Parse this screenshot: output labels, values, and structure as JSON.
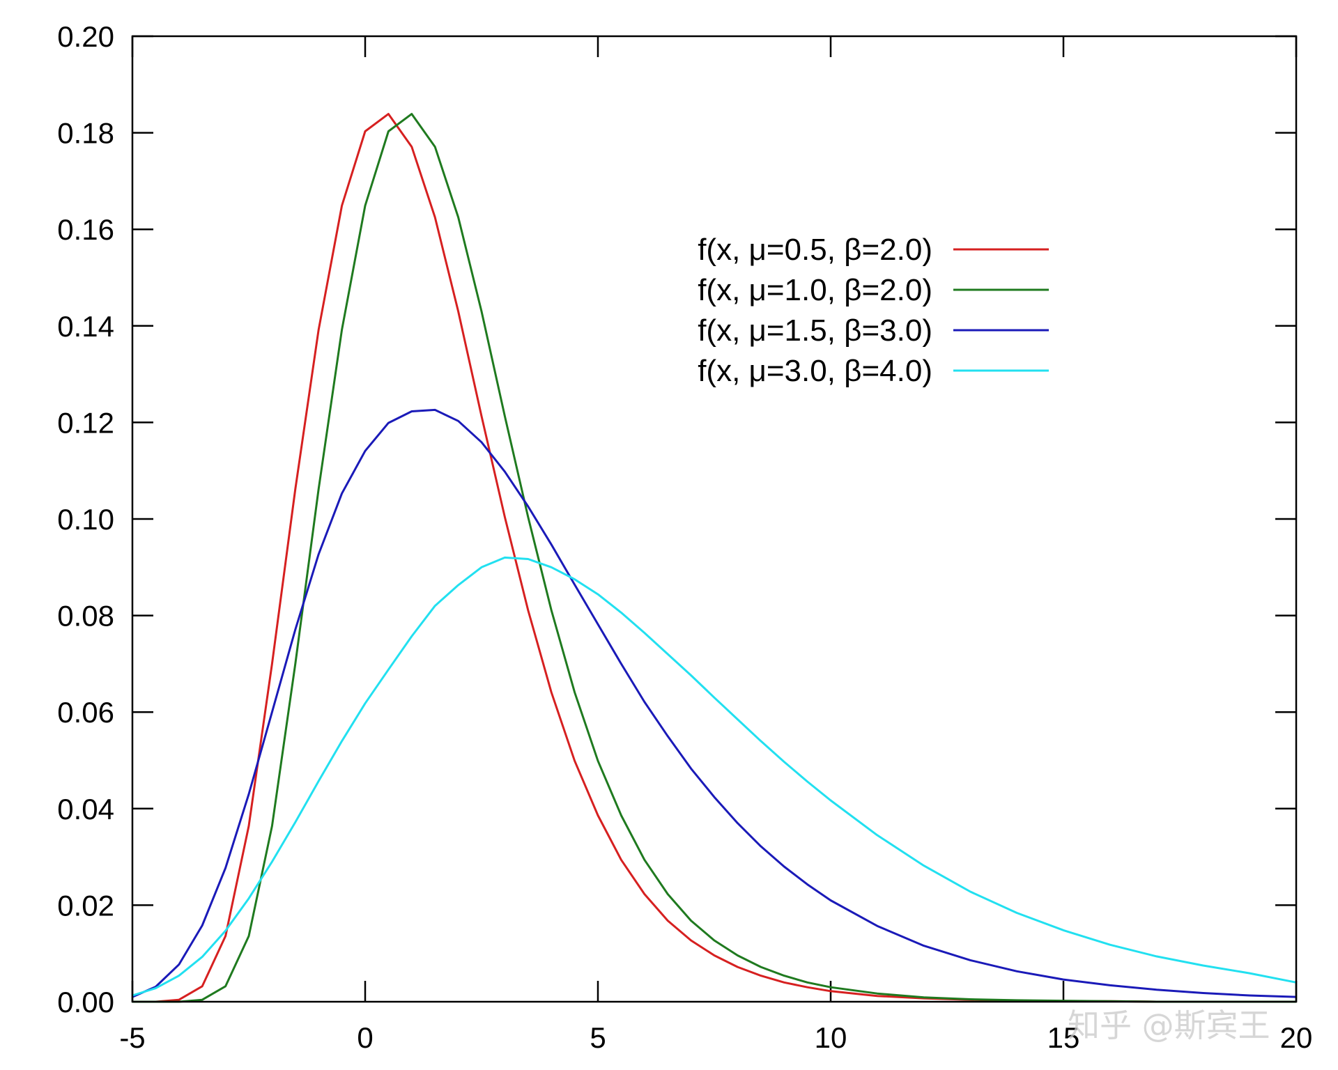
{
  "chart_data": {
    "type": "line",
    "title": "",
    "xlabel": "",
    "ylabel": "",
    "xlim": [
      -5,
      20
    ],
    "ylim": [
      0,
      0.2
    ],
    "x_ticks": [
      {
        "value": -5,
        "label": "-5"
      },
      {
        "value": 0,
        "label": "0"
      },
      {
        "value": 5,
        "label": "5"
      },
      {
        "value": 10,
        "label": "10"
      },
      {
        "value": 15,
        "label": "15"
      },
      {
        "value": 20,
        "label": "20"
      }
    ],
    "y_ticks": [
      {
        "value": 0,
        "label": "0.00"
      },
      {
        "value": 0.02,
        "label": "0.02"
      },
      {
        "value": 0.04,
        "label": "0.04"
      },
      {
        "value": 0.06,
        "label": "0.06"
      },
      {
        "value": 0.08,
        "label": "0.08"
      },
      {
        "value": 0.1,
        "label": "0.10"
      },
      {
        "value": 0.12,
        "label": "0.12"
      },
      {
        "value": 0.14,
        "label": "0.14"
      },
      {
        "value": 0.16,
        "label": "0.16"
      },
      {
        "value": 0.18,
        "label": "0.18"
      },
      {
        "value": 0.2,
        "label": "0.20"
      }
    ],
    "grid": false,
    "legend_position": "top-right",
    "series": [
      {
        "name": "f(x, μ=0.5, β=2.0)",
        "color": "#d62020",
        "x": [
          -5,
          -4.5,
          -4,
          -3.5,
          -3,
          -2.5,
          -2,
          -1.5,
          -1,
          -0.5,
          0,
          0.5,
          1,
          1.5,
          2,
          2.5,
          3,
          3.5,
          4,
          4.5,
          5,
          5.5,
          6,
          6.5,
          7,
          7.5,
          8,
          8.5,
          9,
          9.5,
          10,
          11,
          12,
          13,
          14,
          15,
          16,
          17,
          18,
          19,
          20
        ],
        "y": [
          0,
          0,
          0.0004,
          0.0032,
          0.0136,
          0.0364,
          0.07,
          0.1062,
          0.1392,
          0.1649,
          0.1803,
          0.1839,
          0.1771,
          0.1625,
          0.143,
          0.1213,
          0.1004,
          0.0811,
          0.0641,
          0.0499,
          0.0386,
          0.0294,
          0.0223,
          0.0168,
          0.0127,
          0.0096,
          0.0072,
          0.0054,
          0.004,
          0.003,
          0.0022,
          0.0012,
          0.0007,
          0.0004,
          0.0002,
          0.0001,
          0.0001,
          0,
          0,
          0,
          0
        ]
      },
      {
        "name": "f(x, μ=1.0, β=2.0)",
        "color": "#1f7a1f",
        "x": [
          -5,
          -4.5,
          -4,
          -3.5,
          -3,
          -2.5,
          -2,
          -1.5,
          -1,
          -0.5,
          0,
          0.5,
          1,
          1.5,
          2,
          2.5,
          3,
          3.5,
          4,
          4.5,
          5,
          5.5,
          6,
          6.5,
          7,
          7.5,
          8,
          8.5,
          9,
          9.5,
          10,
          11,
          12,
          13,
          14,
          15,
          16,
          17,
          18,
          19,
          20
        ],
        "y": [
          0,
          0,
          0,
          0.0004,
          0.0032,
          0.0136,
          0.0364,
          0.07,
          0.1062,
          0.1392,
          0.1649,
          0.1803,
          0.1839,
          0.1771,
          0.1625,
          0.143,
          0.1213,
          0.1004,
          0.0811,
          0.0641,
          0.0499,
          0.0386,
          0.0294,
          0.0223,
          0.0168,
          0.0127,
          0.0096,
          0.0072,
          0.0054,
          0.004,
          0.003,
          0.0017,
          0.0009,
          0.0005,
          0.0003,
          0.0002,
          0.0001,
          0,
          0,
          0,
          0
        ]
      },
      {
        "name": "f(x, μ=1.5, β=3.0)",
        "color": "#1a1ab8",
        "x": [
          -5,
          -4.5,
          -4,
          -3.5,
          -3,
          -2.5,
          -2,
          -1.5,
          -1,
          -0.5,
          0,
          0.5,
          1,
          1.5,
          2,
          2.5,
          3,
          3.5,
          4,
          4.5,
          5,
          5.5,
          6,
          6.5,
          7,
          7.5,
          8,
          8.5,
          9,
          9.5,
          10,
          11,
          12,
          13,
          14,
          15,
          16,
          17,
          18,
          19,
          20
        ],
        "y": [
          0.001,
          0.0031,
          0.0077,
          0.0158,
          0.0277,
          0.043,
          0.06,
          0.0771,
          0.0927,
          0.1053,
          0.1141,
          0.1199,
          0.1223,
          0.1226,
          0.1203,
          0.1159,
          0.1098,
          0.1026,
          0.0947,
          0.0864,
          0.0782,
          0.07,
          0.0621,
          0.055,
          0.0483,
          0.0424,
          0.037,
          0.0322,
          0.028,
          0.0243,
          0.021,
          0.0157,
          0.0116,
          0.0086,
          0.0063,
          0.0046,
          0.0034,
          0.0025,
          0.0018,
          0.0013,
          0.001
        ]
      },
      {
        "name": "f(x, μ=3.0, β=4.0)",
        "color": "#22e0f0",
        "x": [
          -5,
          -4.5,
          -4,
          -3.5,
          -3,
          -2.5,
          -2,
          -1.5,
          -1,
          -0.5,
          0,
          0.5,
          1,
          1.5,
          2,
          2.5,
          3,
          3.5,
          4,
          4.5,
          5,
          5.5,
          6,
          6.5,
          7,
          7.5,
          8,
          8.5,
          9,
          9.5,
          10,
          11,
          12,
          13,
          14,
          15,
          16,
          17,
          18,
          19,
          20
        ],
        "y": [
          0.0013,
          0.0028,
          0.0054,
          0.0093,
          0.0147,
          0.0214,
          0.029,
          0.0372,
          0.0457,
          0.054,
          0.0618,
          0.0688,
          0.0757,
          0.082,
          0.0863,
          0.09,
          0.092,
          0.0917,
          0.09,
          0.0875,
          0.0844,
          0.0806,
          0.0764,
          0.072,
          0.0676,
          0.063,
          0.0585,
          0.054,
          0.0497,
          0.0456,
          0.0417,
          0.0345,
          0.0282,
          0.0228,
          0.0184,
          0.0148,
          0.0118,
          0.0094,
          0.0075,
          0.0059,
          0.004
        ]
      }
    ]
  },
  "watermark": "知乎 @斯宾王"
}
